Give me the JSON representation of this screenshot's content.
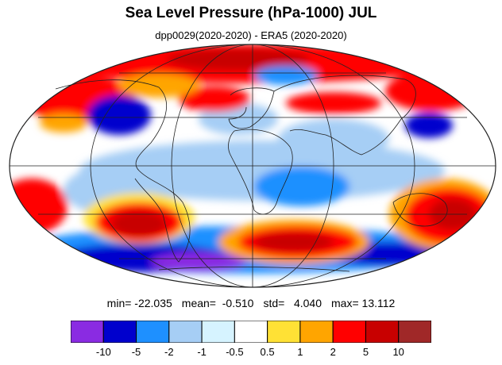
{
  "header": {
    "title": "Sea Level Pressure (hPa-1000) JUL",
    "subtitle": "dpp0029(2020-2020) - ERA5 (2020-2020)"
  },
  "stats": {
    "min": "min= -22.035",
    "mean": "mean=  -0.510",
    "std": "std=   4.040",
    "max": "max= 13.112"
  },
  "colorbar": {
    "colors": [
      "#8a2be2",
      "#0000cd",
      "#1e90ff",
      "#a6cef5",
      "#d6f3ff",
      "#ffffff",
      "#ffe135",
      "#ffa500",
      "#ff0000",
      "#c80000",
      "#a02828"
    ],
    "labels": [
      "-10",
      "-5",
      "-2",
      "-1",
      "-0.5",
      "0.5",
      "1",
      "2",
      "5",
      "10"
    ]
  }
}
